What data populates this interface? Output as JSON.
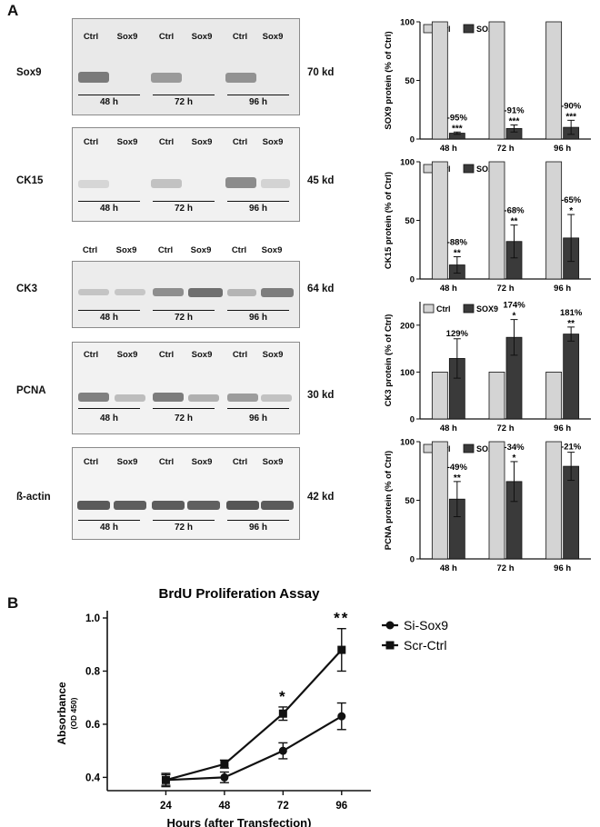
{
  "panel_a_label": "A",
  "panel_b_label": "B",
  "blots": [
    {
      "protein": "Sox9",
      "size": "70 kd",
      "lanes": [
        "Ctrl",
        "Sox9",
        "Ctrl",
        "Sox9",
        "Ctrl",
        "Sox9"
      ],
      "times": [
        "48 h",
        "72 h",
        "96 h"
      ]
    },
    {
      "protein": "CK15",
      "size": "45 kd",
      "lanes": [
        "Ctrl",
        "Sox9",
        "Ctrl",
        "Sox9",
        "Ctrl",
        "Sox9"
      ],
      "times": [
        "48 h",
        "72 h",
        "96 h"
      ]
    },
    {
      "protein": "CK3",
      "size": "64 kd",
      "lanes": [
        "Ctrl",
        "Sox9",
        "Ctrl",
        "Sox9",
        "Ctrl",
        "Sox9"
      ],
      "times": [
        "48 h",
        "72 h",
        "96 h"
      ]
    },
    {
      "protein": "PCNA",
      "size": "30 kd",
      "lanes": [
        "Ctrl",
        "Sox9",
        "Ctrl",
        "Sox9",
        "Ctrl",
        "Sox9"
      ],
      "times": [
        "48 h",
        "72 h",
        "96 h"
      ]
    },
    {
      "protein": "ß-actin",
      "size": "42 kd",
      "lanes": [
        "Ctrl",
        "Sox9",
        "Ctrl",
        "Sox9",
        "Ctrl",
        "Sox9"
      ],
      "times": [
        "48 h",
        "72 h",
        "96 h"
      ]
    }
  ],
  "chart_data": [
    {
      "type": "bar",
      "ylabel": "SOX9 protein (% of Ctrl)",
      "categories": [
        "48 h",
        "72 h",
        "96 h"
      ],
      "ylim": [
        0,
        100
      ],
      "yticks": [
        0,
        50,
        100
      ],
      "legend": [
        "Ctrl",
        "SOX9"
      ],
      "series": [
        {
          "name": "Ctrl",
          "values": [
            100,
            100,
            100
          ]
        },
        {
          "name": "SOX9",
          "values": [
            5,
            9,
            10
          ],
          "errors": [
            1,
            3,
            6
          ]
        }
      ],
      "pct_labels": [
        "-95%",
        "-91%",
        "-90%"
      ],
      "sig": [
        "***",
        "***",
        "***"
      ]
    },
    {
      "type": "bar",
      "ylabel": "CK15 protein (% of Ctrl)",
      "categories": [
        "48 h",
        "72 h",
        "96 h"
      ],
      "ylim": [
        0,
        100
      ],
      "yticks": [
        0,
        50,
        100
      ],
      "legend": [
        "Ctrl",
        "SOX9"
      ],
      "series": [
        {
          "name": "Ctrl",
          "values": [
            100,
            100,
            100
          ]
        },
        {
          "name": "SOX9",
          "values": [
            12,
            32,
            35
          ],
          "errors": [
            7,
            14,
            20
          ]
        }
      ],
      "pct_labels": [
        "-88%",
        "-68%",
        "-65%"
      ],
      "sig": [
        "**",
        "**",
        "*"
      ]
    },
    {
      "type": "bar",
      "ylabel": "CK3 protein (% of Ctrl)",
      "categories": [
        "48 h",
        "72 h",
        "96 h"
      ],
      "ylim": [
        0,
        250
      ],
      "yticks": [
        0,
        100,
        200
      ],
      "legend": [
        "Ctrl",
        "SOX9"
      ],
      "series": [
        {
          "name": "Ctrl",
          "values": [
            100,
            100,
            100
          ]
        },
        {
          "name": "SOX9",
          "values": [
            129,
            174,
            181
          ],
          "errors": [
            42,
            38,
            15
          ]
        }
      ],
      "pct_labels": [
        "129%",
        "174%",
        "181%"
      ],
      "sig": [
        "",
        "*",
        "**"
      ]
    },
    {
      "type": "bar",
      "ylabel": "PCNA protein (% of Ctrl)",
      "categories": [
        "48 h",
        "72 h",
        "96 h"
      ],
      "ylim": [
        0,
        100
      ],
      "yticks": [
        0,
        50,
        100
      ],
      "legend": [
        "Ctrl",
        "SOX9"
      ],
      "series": [
        {
          "name": "Ctrl",
          "values": [
            100,
            100,
            100
          ]
        },
        {
          "name": "SOX9",
          "values": [
            51,
            66,
            79
          ],
          "errors": [
            15,
            17,
            12
          ]
        }
      ],
      "pct_labels": [
        "-49%",
        "-34%",
        "-21%"
      ],
      "sig": [
        "**",
        "*",
        ""
      ]
    },
    {
      "type": "line",
      "title": "BrdU Proliferation Assay",
      "xlabel": "Hours (after Transfection)",
      "ylabel": "Absorbance",
      "ylabel_sub": "(OD 450)",
      "x": [
        24,
        48,
        72,
        96
      ],
      "xlim": [
        0,
        108
      ],
      "ylim": [
        0.35,
        1.0
      ],
      "yticks": [
        0.4,
        0.6,
        0.8,
        1.0
      ],
      "ytick_labels": [
        "0.4",
        "0.6",
        "0.8",
        "1.0"
      ],
      "series": [
        {
          "name": "Si-Sox9",
          "marker": "circle",
          "values": [
            0.39,
            0.4,
            0.5,
            0.63
          ],
          "errors": [
            0.025,
            0.02,
            0.03,
            0.05
          ]
        },
        {
          "name": "Scr-Ctrl",
          "marker": "square",
          "values": [
            0.39,
            0.45,
            0.64,
            0.88
          ],
          "errors": [
            0.02,
            0.015,
            0.025,
            0.08
          ]
        }
      ],
      "annotations": [
        {
          "x": 72,
          "text": "*"
        },
        {
          "x": 96,
          "text": "**"
        }
      ]
    }
  ]
}
